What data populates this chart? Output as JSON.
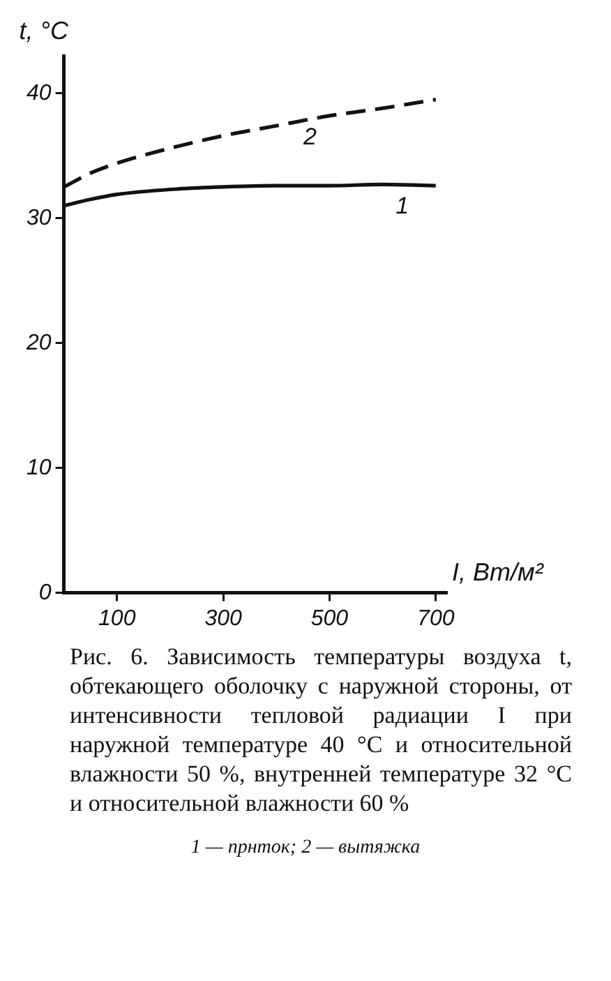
{
  "chart_data": {
    "type": "line",
    "xlabel": "I, Вт/м²",
    "ylabel": "t, °C",
    "x": [
      0,
      50,
      100,
      200,
      300,
      400,
      500,
      600,
      700
    ],
    "series": [
      {
        "name": "1",
        "color": "#111111",
        "line_style": "solid",
        "values": [
          31,
          31.5,
          31.9,
          32.3,
          32.5,
          32.6,
          32.6,
          32.7,
          32.6
        ]
      },
      {
        "name": "2",
        "color": "#111111",
        "line_style": "dashed",
        "values": [
          32.5,
          33.6,
          34.4,
          35.6,
          36.6,
          37.4,
          38.2,
          38.8,
          39.5
        ]
      }
    ],
    "xlim": [
      0,
      720
    ],
    "xticks": [
      100,
      300,
      500,
      700
    ],
    "ylim": [
      0,
      43
    ],
    "yticks": [
      0,
      10,
      20,
      30,
      40
    ],
    "grid": false,
    "legend": false,
    "marker": "none",
    "annotations": [
      "Рис. 6. Зависимость температуры воздуха t, обтекающего оболочку с наружной стороны, от интенсивности тепловой радиации I при наружной температуре 40 °C и относительной влажности 50 %, внутренней температуре 32 °C и относительной влажности 60 %",
      "1 — прнток; 2 — вытяжка"
    ]
  }
}
